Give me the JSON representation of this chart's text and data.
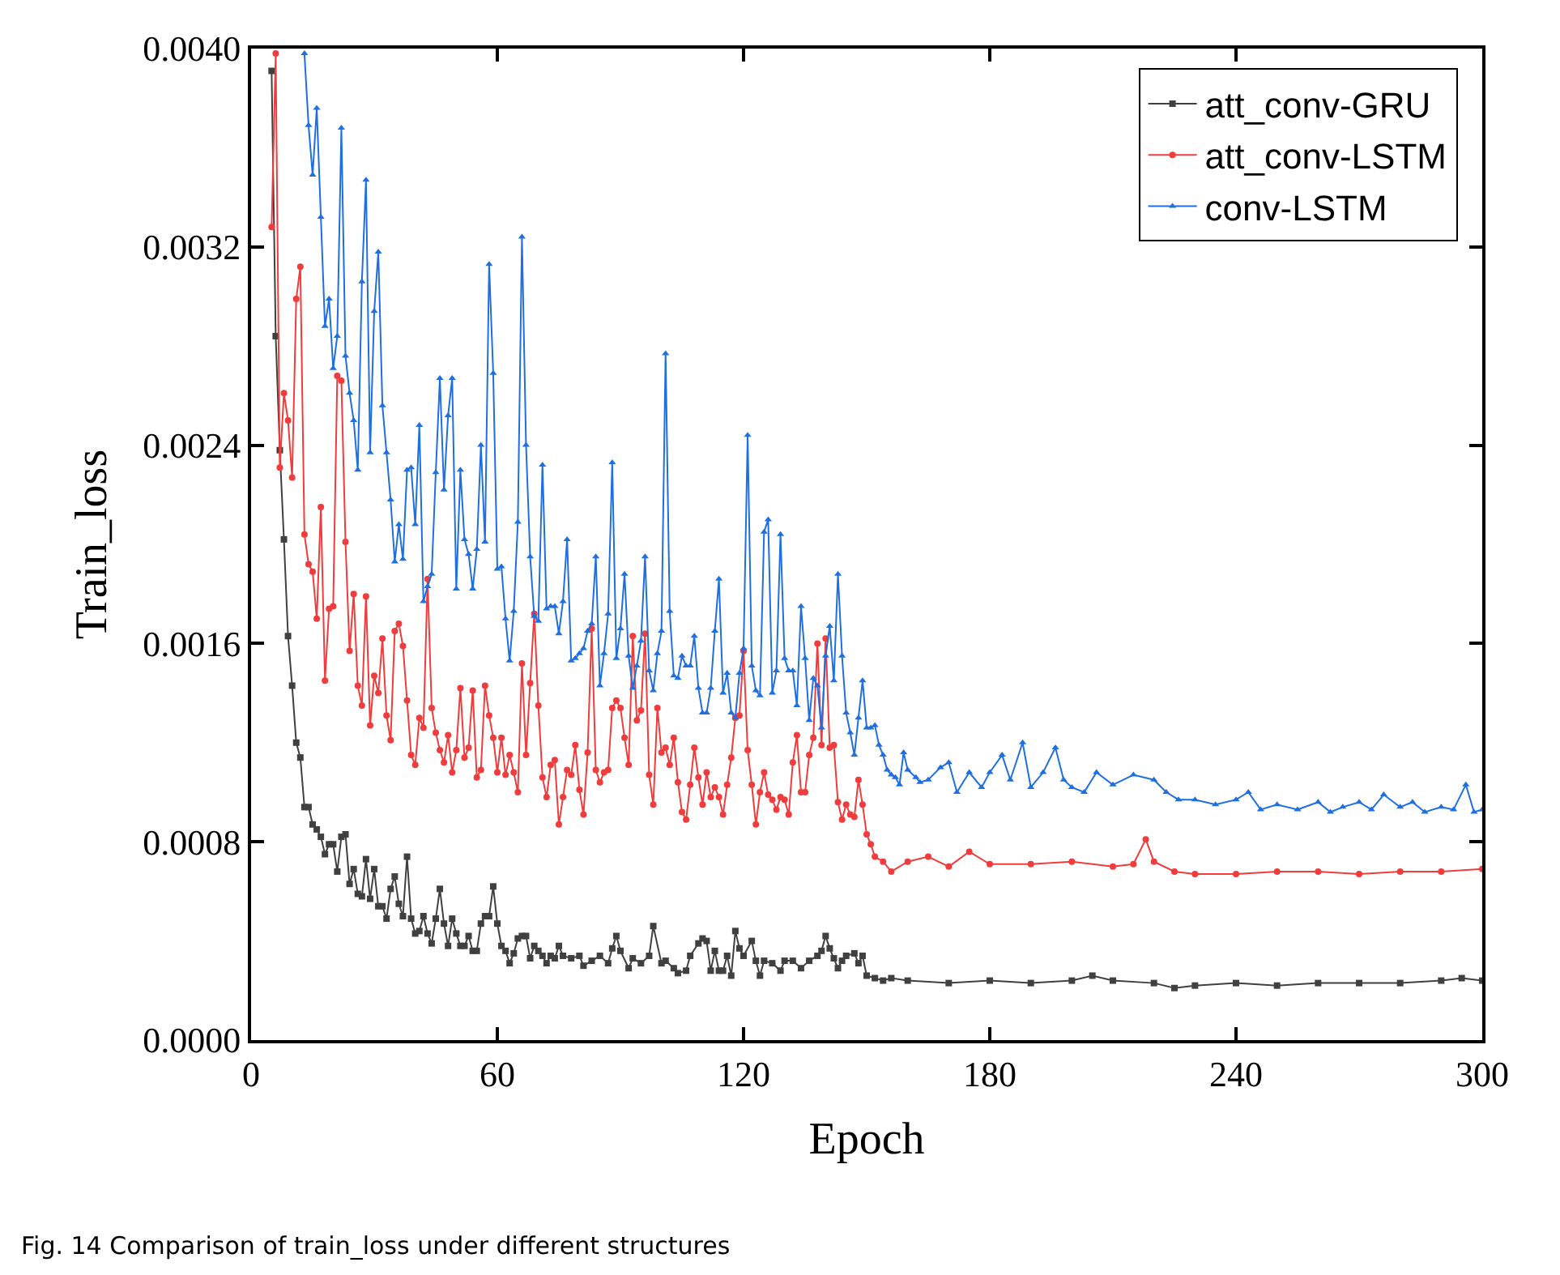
{
  "chart_data": {
    "type": "line",
    "xlabel": "Epoch",
    "ylabel": "Train_loss",
    "xlim": [
      0,
      300
    ],
    "xticks": [
      0,
      60,
      120,
      180,
      240,
      300
    ],
    "ylim": [
      0,
      0.004
    ],
    "yticks": [
      {
        "value": 0,
        "label": "0.0000"
      },
      {
        "value": 0.0008,
        "label": "0.0008"
      },
      {
        "value": 0.0016,
        "label": "0.0016"
      },
      {
        "value": 0.0024,
        "label": "0.0024"
      },
      {
        "value": 0.0032,
        "label": "0.0032"
      },
      {
        "value": 0.004,
        "label": "0.0040"
      }
    ],
    "grid": false,
    "legend": "top right",
    "line_style": "solid",
    "annotations": [
      "Fig. 14 Comparison of train_loss under different structures"
    ],
    "series": [
      {
        "name": "att_conv-GRU",
        "color": "#404040",
        "marker": "square",
        "x": [
          5,
          6,
          7,
          8,
          9,
          10,
          11,
          12,
          13,
          14,
          15,
          16,
          17,
          18,
          19,
          20,
          21,
          22,
          23,
          24,
          25,
          26,
          27,
          28,
          29,
          30,
          31,
          32,
          33,
          34,
          35,
          36,
          37,
          38,
          39,
          40,
          41,
          42,
          43,
          44,
          45,
          46,
          47,
          48,
          49,
          50,
          51,
          52,
          53,
          54,
          55,
          56,
          57,
          58,
          59,
          60,
          61,
          62,
          63,
          64,
          65,
          66,
          67,
          68,
          69,
          70,
          71,
          72,
          73,
          74,
          75,
          76,
          78,
          80,
          81,
          83,
          85,
          87,
          88,
          89,
          90,
          92,
          93,
          95,
          97,
          98,
          100,
          101,
          103,
          104,
          106,
          107,
          109,
          110,
          111,
          112,
          113,
          114,
          115,
          116,
          117,
          118,
          119,
          120,
          122,
          123,
          124,
          125,
          127,
          129,
          130,
          132,
          134,
          136,
          138,
          139,
          140,
          141,
          142,
          143,
          144,
          145,
          147,
          148,
          149,
          150,
          152,
          154,
          156,
          160,
          170,
          180,
          190,
          200,
          205,
          210,
          220,
          225,
          230,
          240,
          250,
          260,
          270,
          280,
          290,
          295,
          300
        ],
        "values": [
          0.00391,
          0.00284,
          0.00238,
          0.00202,
          0.00163,
          0.00143,
          0.0012,
          0.00114,
          0.00094,
          0.00094,
          0.00087,
          0.00085,
          0.00082,
          0.00075,
          0.00079,
          0.00079,
          0.00068,
          0.00082,
          0.00083,
          0.00063,
          0.00069,
          0.00059,
          0.00058,
          0.00073,
          0.00057,
          0.00069,
          0.00054,
          0.00054,
          0.00049,
          0.00061,
          0.00066,
          0.00055,
          0.0005,
          0.00074,
          0.00049,
          0.00043,
          0.00044,
          0.0005,
          0.00043,
          0.00039,
          0.00049,
          0.00061,
          0.00047,
          0.00038,
          0.00049,
          0.00043,
          0.00038,
          0.00038,
          0.00042,
          0.00036,
          0.00036,
          0.00047,
          0.0005,
          0.0005,
          0.00062,
          0.00047,
          0.00038,
          0.00036,
          0.00031,
          0.00035,
          0.00041,
          0.00042,
          0.00042,
          0.00033,
          0.00038,
          0.00036,
          0.00034,
          0.00031,
          0.00034,
          0.00033,
          0.00038,
          0.00034,
          0.00033,
          0.00034,
          0.0003,
          0.00032,
          0.00034,
          0.00031,
          0.00037,
          0.00042,
          0.00036,
          0.00029,
          0.00033,
          0.00031,
          0.00034,
          0.00046,
          0.00031,
          0.00032,
          0.00029,
          0.00027,
          0.00028,
          0.00034,
          0.00039,
          0.00041,
          0.0004,
          0.00028,
          0.00036,
          0.00028,
          0.00028,
          0.00034,
          0.00026,
          0.00044,
          0.00037,
          0.00034,
          0.0004,
          0.00032,
          0.00026,
          0.00032,
          0.00031,
          0.00028,
          0.00032,
          0.00032,
          0.00029,
          0.00032,
          0.00034,
          0.00036,
          0.00042,
          0.00037,
          0.00033,
          0.00029,
          0.00032,
          0.00034,
          0.00035,
          0.00031,
          0.00034,
          0.00026,
          0.00025,
          0.00024,
          0.00025,
          0.00024,
          0.00023,
          0.00024,
          0.00023,
          0.00024,
          0.00026,
          0.00024,
          0.00023,
          0.00021,
          0.00022,
          0.00023,
          0.00022,
          0.00023,
          0.00023,
          0.00023,
          0.00024,
          0.00025,
          0.00024
        ]
      },
      {
        "name": "att_conv-LSTM",
        "color": "#f03c3c",
        "marker": "circle",
        "x": [
          5,
          6,
          7,
          8,
          9,
          10,
          11,
          12,
          13,
          14,
          15,
          16,
          17,
          18,
          19,
          20,
          21,
          22,
          23,
          24,
          25,
          26,
          27,
          28,
          29,
          30,
          31,
          32,
          33,
          34,
          35,
          36,
          37,
          38,
          39,
          40,
          41,
          42,
          43,
          44,
          45,
          46,
          47,
          48,
          49,
          50,
          51,
          52,
          53,
          54,
          55,
          56,
          57,
          58,
          59,
          60,
          61,
          62,
          63,
          64,
          65,
          66,
          67,
          68,
          69,
          70,
          71,
          72,
          73,
          74,
          75,
          76,
          77,
          78,
          79,
          80,
          81,
          82,
          83,
          84,
          85,
          86,
          87,
          88,
          89,
          90,
          91,
          92,
          93,
          94,
          95,
          96,
          97,
          98,
          99,
          100,
          101,
          102,
          103,
          104,
          105,
          106,
          107,
          108,
          109,
          110,
          111,
          112,
          113,
          114,
          115,
          116,
          117,
          118,
          119,
          120,
          121,
          122,
          123,
          124,
          125,
          126,
          127,
          128,
          129,
          130,
          131,
          132,
          133,
          134,
          135,
          136,
          137,
          138,
          139,
          140,
          141,
          142,
          143,
          144,
          145,
          146,
          147,
          148,
          149,
          150,
          151,
          152,
          154,
          156,
          160,
          165,
          170,
          175,
          180,
          190,
          200,
          210,
          215,
          218,
          220,
          225,
          230,
          240,
          250,
          260,
          270,
          280,
          290,
          300
        ],
        "values": [
          0.00328,
          0.00398,
          0.00231,
          0.00261,
          0.0025,
          0.00227,
          0.00299,
          0.00312,
          0.00204,
          0.00192,
          0.00189,
          0.0017,
          0.00215,
          0.00145,
          0.00174,
          0.00175,
          0.00268,
          0.00266,
          0.00201,
          0.00157,
          0.0018,
          0.00143,
          0.00135,
          0.00179,
          0.00127,
          0.00147,
          0.0014,
          0.00162,
          0.00131,
          0.00121,
          0.00165,
          0.00168,
          0.00159,
          0.00137,
          0.00115,
          0.00111,
          0.0013,
          0.00126,
          0.00186,
          0.00134,
          0.00124,
          0.00117,
          0.00112,
          0.00123,
          0.00108,
          0.00117,
          0.00142,
          0.00114,
          0.00118,
          0.00141,
          0.00106,
          0.00109,
          0.00143,
          0.00131,
          0.00122,
          0.00108,
          0.00122,
          0.00107,
          0.00115,
          0.00108,
          0.001,
          0.00152,
          0.00115,
          0.00144,
          0.00172,
          0.00135,
          0.00106,
          0.00098,
          0.00111,
          0.00113,
          0.00087,
          0.00098,
          0.00109,
          0.00107,
          0.00119,
          0.00101,
          0.00091,
          0.00116,
          0.00166,
          0.00109,
          0.00104,
          0.00108,
          0.00109,
          0.00134,
          0.00137,
          0.00134,
          0.00122,
          0.00111,
          0.00163,
          0.00129,
          0.00133,
          0.00164,
          0.00107,
          0.00095,
          0.00134,
          0.00116,
          0.00118,
          0.00111,
          0.00122,
          0.00104,
          0.00092,
          0.00089,
          0.00103,
          0.00118,
          0.00106,
          0.00095,
          0.00108,
          0.00098,
          0.00102,
          0.00098,
          0.00091,
          0.00103,
          0.00114,
          0.0013,
          0.00131,
          0.00157,
          0.00117,
          0.00103,
          0.00087,
          0.001,
          0.00108,
          0.00099,
          0.00097,
          0.00093,
          0.00098,
          0.00097,
          0.00091,
          0.00112,
          0.00123,
          0.001,
          0.001,
          0.00115,
          0.00122,
          0.0016,
          0.00119,
          0.00162,
          0.00118,
          0.00119,
          0.00096,
          0.00089,
          0.00095,
          0.00091,
          0.0009,
          0.00105,
          0.00095,
          0.00083,
          0.00079,
          0.00074,
          0.00072,
          0.00068,
          0.00072,
          0.00074,
          0.0007,
          0.00076,
          0.00071,
          0.00071,
          0.00072,
          0.0007,
          0.00071,
          0.00081,
          0.00072,
          0.00068,
          0.00067,
          0.00067,
          0.00068,
          0.00068,
          0.00067,
          0.00068,
          0.00068,
          0.00069
        ]
      },
      {
        "name": "conv-LSTM",
        "color": "#1f6fe0",
        "marker": "triangle",
        "x": [
          13,
          14,
          15,
          16,
          17,
          18,
          19,
          20,
          21,
          22,
          23,
          24,
          25,
          26,
          27,
          28,
          29,
          30,
          31,
          32,
          33,
          34,
          35,
          36,
          37,
          38,
          39,
          40,
          41,
          42,
          43,
          44,
          45,
          46,
          47,
          48,
          49,
          50,
          51,
          52,
          53,
          54,
          55,
          56,
          57,
          58,
          59,
          60,
          61,
          62,
          63,
          64,
          65,
          66,
          67,
          68,
          69,
          70,
          71,
          72,
          73,
          74,
          75,
          76,
          77,
          78,
          79,
          80,
          81,
          82,
          83,
          84,
          85,
          86,
          87,
          88,
          89,
          90,
          91,
          92,
          93,
          94,
          95,
          96,
          97,
          98,
          99,
          100,
          101,
          102,
          103,
          104,
          105,
          106,
          107,
          108,
          109,
          110,
          111,
          112,
          113,
          114,
          115,
          116,
          117,
          118,
          119,
          120,
          121,
          122,
          123,
          124,
          125,
          126,
          127,
          128,
          129,
          130,
          131,
          132,
          133,
          134,
          135,
          136,
          137,
          138,
          139,
          140,
          141,
          142,
          143,
          144,
          145,
          146,
          147,
          148,
          149,
          150,
          151,
          152,
          153,
          154,
          155,
          156,
          157,
          158,
          159,
          160,
          162,
          163,
          165,
          168,
          170,
          172,
          175,
          178,
          180,
          183,
          185,
          188,
          190,
          193,
          196,
          198,
          200,
          203,
          206,
          210,
          215,
          220,
          223,
          226,
          230,
          235,
          240,
          243,
          246,
          250,
          255,
          260,
          263,
          266,
          270,
          273,
          276,
          280,
          283,
          286,
          290,
          293,
          296,
          298,
          300
        ],
        "values": [
          0.00398,
          0.00369,
          0.00349,
          0.00376,
          0.00332,
          0.00288,
          0.00299,
          0.00271,
          0.00284,
          0.00368,
          0.00276,
          0.00261,
          0.0025,
          0.0023,
          0.00306,
          0.00347,
          0.00237,
          0.00294,
          0.00318,
          0.00256,
          0.00237,
          0.00218,
          0.00193,
          0.00208,
          0.00194,
          0.0023,
          0.00231,
          0.00208,
          0.00248,
          0.00177,
          0.00183,
          0.00188,
          0.00229,
          0.00267,
          0.00222,
          0.00252,
          0.00267,
          0.00182,
          0.0023,
          0.00202,
          0.00196,
          0.00182,
          0.00198,
          0.0024,
          0.00201,
          0.00313,
          0.00269,
          0.0019,
          0.00191,
          0.0017,
          0.00153,
          0.00173,
          0.00209,
          0.00324,
          0.0024,
          0.00195,
          0.00171,
          0.00169,
          0.00232,
          0.00174,
          0.00175,
          0.00175,
          0.00164,
          0.00177,
          0.00202,
          0.00153,
          0.00154,
          0.00156,
          0.00158,
          0.00165,
          0.00168,
          0.00195,
          0.00143,
          0.00156,
          0.00172,
          0.00233,
          0.00154,
          0.00166,
          0.00188,
          0.00155,
          0.00142,
          0.00151,
          0.00161,
          0.00195,
          0.00149,
          0.00141,
          0.00156,
          0.00165,
          0.00277,
          0.00173,
          0.00147,
          0.00146,
          0.00155,
          0.00151,
          0.00151,
          0.00163,
          0.00142,
          0.00132,
          0.00132,
          0.00142,
          0.00165,
          0.00186,
          0.0014,
          0.00148,
          0.00132,
          0.0013,
          0.00148,
          0.00158,
          0.00244,
          0.00151,
          0.00141,
          0.00139,
          0.00205,
          0.0021,
          0.0014,
          0.00149,
          0.00204,
          0.00154,
          0.00149,
          0.00149,
          0.00135,
          0.00175,
          0.00154,
          0.00129,
          0.00146,
          0.00143,
          0.00126,
          0.00155,
          0.00167,
          0.00145,
          0.00188,
          0.00155,
          0.00132,
          0.00124,
          0.00115,
          0.0013,
          0.00145,
          0.00126,
          0.00126,
          0.00127,
          0.00119,
          0.00115,
          0.00109,
          0.00107,
          0.00106,
          0.00103,
          0.00116,
          0.00109,
          0.00106,
          0.00104,
          0.00105,
          0.0011,
          0.00112,
          0.001,
          0.00108,
          0.00102,
          0.00108,
          0.00115,
          0.00105,
          0.0012,
          0.00102,
          0.00108,
          0.00118,
          0.00105,
          0.00102,
          0.001,
          0.00108,
          0.00103,
          0.00107,
          0.00105,
          0.001,
          0.00097,
          0.00097,
          0.00095,
          0.00097,
          0.001,
          0.00093,
          0.00095,
          0.00093,
          0.00096,
          0.00092,
          0.00094,
          0.00096,
          0.00093,
          0.00099,
          0.00094,
          0.00096,
          0.00092,
          0.00094,
          0.00093,
          0.00103,
          0.00092,
          0.00093
        ]
      }
    ]
  }
}
